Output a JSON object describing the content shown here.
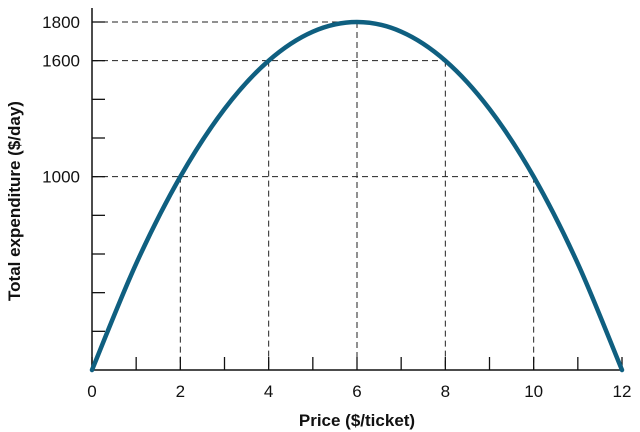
{
  "chart_data": {
    "type": "line",
    "title": "",
    "xlabel": "Price ($/ticket)",
    "ylabel": "Total expenditure ($/day)",
    "xlim": [
      0,
      12
    ],
    "ylim": [
      0,
      1800
    ],
    "x_ticks_labeled": [
      0,
      2,
      4,
      6,
      8,
      10,
      12
    ],
    "x_ticks_minor": [
      1,
      3,
      5,
      7,
      9,
      11
    ],
    "y_ticks_labeled": [
      1000,
      1600,
      1800
    ],
    "y_ticks_minor": [
      200,
      400,
      600,
      800,
      1200,
      1400
    ],
    "series": [
      {
        "color": "#0f5f80",
        "x": [
          0,
          1,
          2,
          3,
          4,
          5,
          6,
          7,
          8,
          9,
          10,
          11,
          12
        ],
        "y": [
          0,
          550,
          1000,
          1350,
          1600,
          1750,
          1800,
          1750,
          1600,
          1350,
          1000,
          550,
          0
        ]
      }
    ],
    "reference_points": [
      {
        "x": 2,
        "y": 1000
      },
      {
        "x": 4,
        "y": 1600
      },
      {
        "x": 6,
        "y": 1800
      },
      {
        "x": 8,
        "y": 1600
      },
      {
        "x": 10,
        "y": 1000
      }
    ],
    "grid": false,
    "legend": "none"
  }
}
